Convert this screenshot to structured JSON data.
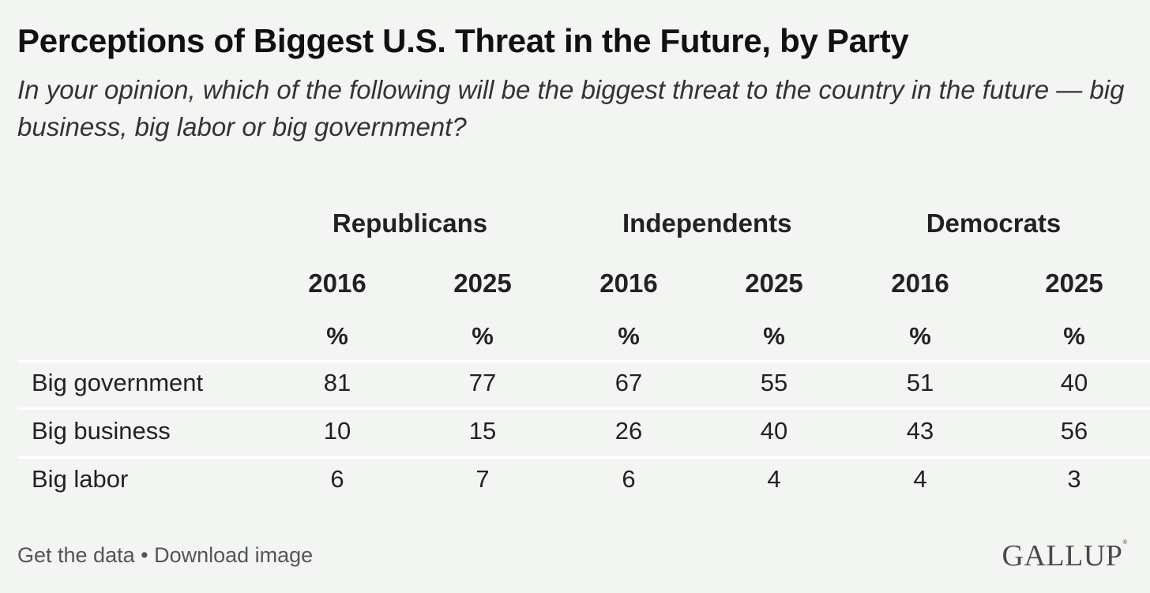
{
  "title": "Perceptions of Biggest U.S. Threat in the Future, by Party",
  "subtitle": "In your opinion, which of the following will be the biggest threat to the country in the future — big business, big labor or big government?",
  "chart_data": {
    "type": "table",
    "groups": [
      "Republicans",
      "Independents",
      "Democrats"
    ],
    "years": [
      "2016",
      "2025",
      "2016",
      "2025",
      "2016",
      "2025"
    ],
    "unit": "%",
    "rows": [
      {
        "label": "Big government",
        "values": [
          81,
          77,
          67,
          55,
          51,
          40
        ]
      },
      {
        "label": "Big business",
        "values": [
          10,
          15,
          26,
          40,
          43,
          56
        ]
      },
      {
        "label": "Big labor",
        "values": [
          6,
          7,
          6,
          4,
          4,
          3
        ]
      }
    ]
  },
  "footer": {
    "get_data": "Get the data",
    "separator": " • ",
    "download": "Download image"
  },
  "logo": "GALLUP",
  "colors": {
    "background": "#f2f5f1",
    "rule": "#ffffff"
  }
}
